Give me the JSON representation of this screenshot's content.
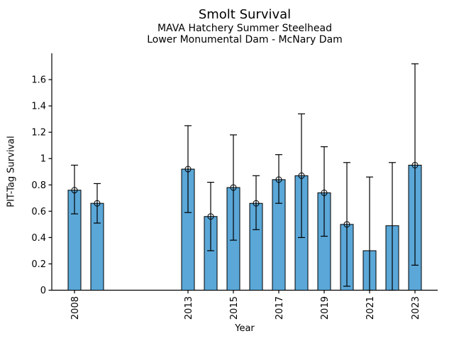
{
  "header": {
    "title": "Smolt Survival",
    "subtitle1": "MAVA Hatchery Summer Steelhead",
    "subtitle2": "Lower Monumental Dam - McNary Dam"
  },
  "colors": {
    "bar_fill": "#5AA7D8",
    "bar_edge": "#000000",
    "errorbar": "#000000",
    "axis": "#000000",
    "background": "#FFFFFF"
  },
  "chart_data": {
    "type": "bar",
    "title": "Smolt Survival",
    "subtitle": [
      "MAVA Hatchery Summer Steelhead",
      "Lower Monumental Dam - McNary Dam"
    ],
    "xlabel": "Year",
    "ylabel": "PIT-Tag Survival",
    "xlim": [
      2007,
      2024
    ],
    "ylim": [
      0,
      1.8
    ],
    "x_tick_years": [
      2008,
      2013,
      2015,
      2017,
      2019,
      2021,
      2023
    ],
    "y_ticks": [
      0,
      0.2,
      0.4,
      0.6,
      0.8,
      1,
      1.2,
      1.4,
      1.6
    ],
    "legend": null,
    "grid": false,
    "points": [
      {
        "year": 2008,
        "value": 0.76,
        "ci_low": 0.58,
        "ci_high": 0.95,
        "marker": true
      },
      {
        "year": 2009,
        "value": 0.66,
        "ci_low": 0.51,
        "ci_high": 0.81,
        "marker": true
      },
      {
        "year": 2013,
        "value": 0.92,
        "ci_low": 0.59,
        "ci_high": 1.25,
        "marker": true
      },
      {
        "year": 2014,
        "value": 0.56,
        "ci_low": 0.3,
        "ci_high": 0.82,
        "marker": true
      },
      {
        "year": 2015,
        "value": 0.78,
        "ci_low": 0.38,
        "ci_high": 1.18,
        "marker": true
      },
      {
        "year": 2016,
        "value": 0.66,
        "ci_low": 0.46,
        "ci_high": 0.87,
        "marker": true
      },
      {
        "year": 2017,
        "value": 0.84,
        "ci_low": 0.66,
        "ci_high": 1.03,
        "marker": true
      },
      {
        "year": 2018,
        "value": 0.87,
        "ci_low": 0.4,
        "ci_high": 1.34,
        "marker": true
      },
      {
        "year": 2019,
        "value": 0.74,
        "ci_low": 0.41,
        "ci_high": 1.09,
        "marker": true
      },
      {
        "year": 2020,
        "value": 0.5,
        "ci_low": 0.03,
        "ci_high": 0.97,
        "marker": true
      },
      {
        "year": 2021,
        "value": 0.3,
        "ci_low": 0.0,
        "ci_high": 0.86,
        "marker": false
      },
      {
        "year": 2022,
        "value": 0.49,
        "ci_low": 0.0,
        "ci_high": 0.97,
        "marker": false
      },
      {
        "year": 2023,
        "value": 0.95,
        "ci_low": 0.19,
        "ci_high": 1.72,
        "marker": true
      }
    ]
  }
}
